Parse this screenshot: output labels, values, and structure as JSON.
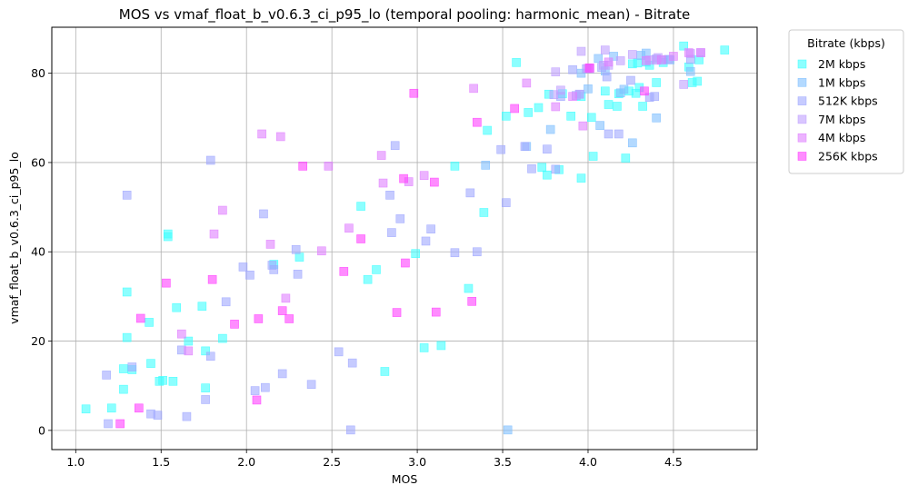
{
  "chart_data": {
    "type": "scatter",
    "title": "MOS vs vmaf_float_b_v0.6.3_ci_p95_lo (temporal pooling: harmonic_mean) - Bitrate",
    "xlabel": "MOS",
    "ylabel": "vmaf_float_b_v0.6.3_ci_p95_lo",
    "xlim": [
      0.86,
      4.99
    ],
    "ylim": [
      -4.3,
      90.3
    ],
    "xticks": [
      1.0,
      1.5,
      2.0,
      2.5,
      3.0,
      3.5,
      4.0,
      4.5
    ],
    "xtick_labels": [
      "1.0",
      "1.5",
      "2.0",
      "2.5",
      "3.0",
      "3.5",
      "4.0",
      "4.5"
    ],
    "yticks": [
      0,
      20,
      40,
      60,
      80
    ],
    "ytick_labels": [
      "0",
      "20",
      "40",
      "60",
      "80"
    ],
    "grid": true,
    "marker": "square",
    "legend": {
      "title": "Bitrate (kbps)",
      "placement": "outside-upper-right"
    },
    "series": [
      {
        "name": "2M kbps",
        "color": "#40ffff",
        "points": [
          [
            1.06,
            4.8
          ],
          [
            1.21,
            5.0
          ],
          [
            1.28,
            9.2
          ],
          [
            1.3,
            31.0
          ],
          [
            1.3,
            20.8
          ],
          [
            1.28,
            13.8
          ],
          [
            1.33,
            13.6
          ],
          [
            1.43,
            24.2
          ],
          [
            1.44,
            15.0
          ],
          [
            1.49,
            11.0
          ],
          [
            1.51,
            11.2
          ],
          [
            1.54,
            43.4
          ],
          [
            1.54,
            44.0
          ],
          [
            1.57,
            11.0
          ],
          [
            1.59,
            27.5
          ],
          [
            1.66,
            20.0
          ],
          [
            1.74,
            27.8
          ],
          [
            1.76,
            17.8
          ],
          [
            1.76,
            9.5
          ],
          [
            1.86,
            20.6
          ],
          [
            2.16,
            37.2
          ],
          [
            2.31,
            38.8
          ],
          [
            2.67,
            50.2
          ],
          [
            2.71,
            33.8
          ],
          [
            2.76,
            36.0
          ],
          [
            2.81,
            13.2
          ],
          [
            2.99,
            39.6
          ],
          [
            3.04,
            18.5
          ],
          [
            3.14,
            19.0
          ],
          [
            3.22,
            59.2
          ],
          [
            3.3,
            31.8
          ],
          [
            3.39,
            48.8
          ],
          [
            3.41,
            67.2
          ],
          [
            3.52,
            70.4
          ],
          [
            3.58,
            82.4
          ],
          [
            3.65,
            71.2
          ],
          [
            3.71,
            72.3
          ],
          [
            3.73,
            58.9
          ],
          [
            3.76,
            57.2
          ],
          [
            3.77,
            75.3
          ],
          [
            3.83,
            58.4
          ],
          [
            3.85,
            75.4
          ],
          [
            3.9,
            70.4
          ],
          [
            3.96,
            56.5
          ],
          [
            4.02,
            70.1
          ],
          [
            4.03,
            61.4
          ],
          [
            4.1,
            76.0
          ],
          [
            4.12,
            73.0
          ],
          [
            4.17,
            72.6
          ],
          [
            4.18,
            75.4
          ],
          [
            4.22,
            61.0
          ],
          [
            4.24,
            76.0
          ],
          [
            4.26,
            82.1
          ],
          [
            4.28,
            75.5
          ],
          [
            4.3,
            76.8
          ],
          [
            4.32,
            72.6
          ],
          [
            4.34,
            82.5
          ],
          [
            4.36,
            81.8
          ],
          [
            4.4,
            77.9
          ],
          [
            4.44,
            82.4
          ],
          [
            4.56,
            86.1
          ],
          [
            4.59,
            81.4
          ],
          [
            4.61,
            77.9
          ],
          [
            4.64,
            78.2
          ],
          [
            4.65,
            83.0
          ],
          [
            4.8,
            85.2
          ],
          [
            4.29,
            82.3
          ],
          [
            3.96,
            74.8
          ]
        ]
      },
      {
        "name": "1M kbps",
        "color": "#80c0ff",
        "points": [
          [
            3.53,
            0.1
          ],
          [
            3.4,
            59.4
          ],
          [
            3.64,
            63.6
          ],
          [
            3.78,
            67.4
          ],
          [
            3.95,
            75.3
          ],
          [
            4.0,
            76.5
          ],
          [
            4.06,
            83.3
          ],
          [
            4.1,
            80.5
          ],
          [
            4.15,
            83.8
          ],
          [
            4.19,
            75.6
          ],
          [
            4.26,
            64.4
          ],
          [
            4.31,
            84.0
          ],
          [
            4.34,
            84.5
          ],
          [
            4.4,
            70.0
          ],
          [
            4.44,
            83.0
          ],
          [
            4.48,
            83.0
          ],
          [
            4.6,
            80.4
          ],
          [
            4.21,
            76.4
          ],
          [
            4.07,
            68.3
          ],
          [
            3.96,
            80.0
          ]
        ]
      },
      {
        "name": "512K kbps",
        "color": "#a0a8ff",
        "points": [
          [
            1.18,
            12.4
          ],
          [
            1.19,
            1.5
          ],
          [
            1.3,
            52.7
          ],
          [
            1.33,
            14.2
          ],
          [
            1.44,
            3.7
          ],
          [
            1.48,
            3.4
          ],
          [
            1.62,
            18.0
          ],
          [
            1.65,
            3.1
          ],
          [
            1.76,
            6.9
          ],
          [
            1.79,
            16.6
          ],
          [
            1.79,
            60.5
          ],
          [
            1.88,
            28.8
          ],
          [
            1.98,
            36.6
          ],
          [
            2.02,
            34.8
          ],
          [
            2.05,
            8.9
          ],
          [
            2.11,
            9.6
          ],
          [
            2.1,
            48.5
          ],
          [
            2.15,
            37.0
          ],
          [
            2.16,
            36.0
          ],
          [
            2.21,
            12.7
          ],
          [
            2.29,
            40.5
          ],
          [
            2.3,
            35.0
          ],
          [
            2.38,
            10.3
          ],
          [
            2.54,
            17.6
          ],
          [
            2.61,
            0.1
          ],
          [
            2.62,
            15.1
          ],
          [
            2.84,
            52.7
          ],
          [
            2.85,
            44.3
          ],
          [
            2.87,
            63.8
          ],
          [
            2.9,
            47.4
          ],
          [
            3.05,
            42.4
          ],
          [
            3.08,
            45.1
          ],
          [
            3.22,
            39.8
          ],
          [
            3.31,
            53.2
          ],
          [
            3.35,
            40.0
          ],
          [
            3.49,
            62.9
          ],
          [
            3.52,
            51.0
          ],
          [
            3.63,
            63.6
          ],
          [
            3.67,
            58.6
          ],
          [
            3.76,
            63.0
          ],
          [
            3.81,
            58.5
          ],
          [
            3.84,
            74.8
          ],
          [
            3.91,
            80.8
          ],
          [
            3.99,
            81.0
          ],
          [
            4.08,
            81.3
          ],
          [
            4.12,
            66.4
          ],
          [
            4.18,
            66.4
          ],
          [
            4.25,
            78.4
          ],
          [
            4.36,
            74.6
          ],
          [
            4.39,
            74.8
          ],
          [
            4.47,
            83.1
          ],
          [
            4.6,
            83.1
          ],
          [
            4.11,
            79.2
          ],
          [
            4.4,
            83.2
          ],
          [
            3.93,
            75.0
          ]
        ]
      },
      {
        "name": "7M kbps",
        "color": "#c0a0ff",
        "points": [
          [
            3.81,
            80.3
          ],
          [
            3.84,
            76.2
          ],
          [
            3.96,
            84.9
          ],
          [
            4.01,
            81.0
          ],
          [
            4.09,
            81.8
          ],
          [
            4.1,
            85.2
          ],
          [
            4.12,
            81.8
          ],
          [
            4.19,
            82.8
          ],
          [
            4.26,
            84.2
          ],
          [
            4.36,
            83.0
          ],
          [
            4.4,
            82.9
          ],
          [
            4.56,
            77.5
          ],
          [
            4.6,
            84.4
          ],
          [
            4.66,
            84.6
          ],
          [
            4.41,
            83.5
          ],
          [
            3.95,
            75.3
          ],
          [
            3.8,
            75.2
          ]
        ]
      },
      {
        "name": "4M kbps",
        "color": "#e080ff",
        "points": [
          [
            1.62,
            21.6
          ],
          [
            1.66,
            17.8
          ],
          [
            1.81,
            44.0
          ],
          [
            1.86,
            49.3
          ],
          [
            2.09,
            66.4
          ],
          [
            2.14,
            41.7
          ],
          [
            2.2,
            65.8
          ],
          [
            2.23,
            29.6
          ],
          [
            2.44,
            40.2
          ],
          [
            2.48,
            59.2
          ],
          [
            2.6,
            45.3
          ],
          [
            2.79,
            61.6
          ],
          [
            2.8,
            55.4
          ],
          [
            2.95,
            55.7
          ],
          [
            3.04,
            57.1
          ],
          [
            3.33,
            76.6
          ],
          [
            3.64,
            77.8
          ],
          [
            3.81,
            72.5
          ],
          [
            3.91,
            74.8
          ],
          [
            4.0,
            81.1
          ],
          [
            4.12,
            82.5
          ],
          [
            4.34,
            82.8
          ],
          [
            4.43,
            83.0
          ],
          [
            4.5,
            83.8
          ],
          [
            4.66,
            84.6
          ],
          [
            3.97,
            68.2
          ],
          [
            4.59,
            84.6
          ]
        ]
      },
      {
        "name": "256K kbps",
        "color": "#ff40ff",
        "points": [
          [
            1.26,
            1.5
          ],
          [
            1.37,
            5.0
          ],
          [
            1.38,
            25.1
          ],
          [
            1.53,
            33.0
          ],
          [
            1.8,
            33.8
          ],
          [
            1.93,
            23.8
          ],
          [
            2.06,
            6.8
          ],
          [
            2.07,
            25.0
          ],
          [
            2.21,
            26.8
          ],
          [
            2.25,
            25.0
          ],
          [
            2.33,
            59.2
          ],
          [
            2.57,
            35.6
          ],
          [
            2.67,
            42.9
          ],
          [
            2.88,
            26.4
          ],
          [
            2.92,
            56.4
          ],
          [
            2.93,
            37.5
          ],
          [
            2.98,
            75.5
          ],
          [
            3.11,
            26.5
          ],
          [
            3.1,
            55.6
          ],
          [
            3.32,
            28.9
          ],
          [
            3.35,
            69.0
          ],
          [
            3.57,
            72.1
          ],
          [
            4.01,
            81.2
          ],
          [
            4.33,
            76.0
          ]
        ]
      }
    ]
  }
}
